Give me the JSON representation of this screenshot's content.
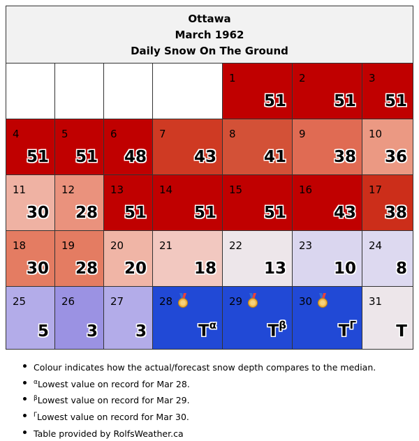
{
  "header": {
    "city": "Ottawa",
    "month": "March 1962",
    "title": "Daily Snow On The Ground"
  },
  "chart_data": {
    "type": "table",
    "title": "Daily Snow On The Ground",
    "start_weekday_offset": 4,
    "days": [
      {
        "day": "1",
        "value": "51",
        "color": "#c00000",
        "medal": false
      },
      {
        "day": "2",
        "value": "51",
        "color": "#c00000",
        "medal": false
      },
      {
        "day": "3",
        "value": "51",
        "color": "#c00000",
        "medal": false
      },
      {
        "day": "4",
        "value": "51",
        "color": "#c00000",
        "medal": false
      },
      {
        "day": "5",
        "value": "51",
        "color": "#c00000",
        "medal": false
      },
      {
        "day": "6",
        "value": "48",
        "color": "#c00000",
        "medal": false
      },
      {
        "day": "7",
        "value": "43",
        "color": "#cf3a23",
        "medal": false
      },
      {
        "day": "8",
        "value": "41",
        "color": "#d35137",
        "medal": false
      },
      {
        "day": "9",
        "value": "38",
        "color": "#e06b53",
        "medal": false
      },
      {
        "day": "10",
        "value": "36",
        "color": "#eb9983",
        "medal": false
      },
      {
        "day": "11",
        "value": "30",
        "color": "#efb2a3",
        "medal": false
      },
      {
        "day": "12",
        "value": "28",
        "color": "#ea927d",
        "medal": false
      },
      {
        "day": "13",
        "value": "51",
        "color": "#c00000",
        "medal": false
      },
      {
        "day": "14",
        "value": "51",
        "color": "#c00000",
        "medal": false
      },
      {
        "day": "15",
        "value": "51",
        "color": "#c00000",
        "medal": false
      },
      {
        "day": "16",
        "value": "43",
        "color": "#c00000",
        "medal": false
      },
      {
        "day": "17",
        "value": "38",
        "color": "#cc2e1a",
        "medal": false
      },
      {
        "day": "18",
        "value": "30",
        "color": "#e47c62",
        "medal": false
      },
      {
        "day": "19",
        "value": "28",
        "color": "#e47c62",
        "medal": false
      },
      {
        "day": "20",
        "value": "20",
        "color": "#f0b5a6",
        "medal": false
      },
      {
        "day": "21",
        "value": "18",
        "color": "#f2c8c0",
        "medal": false
      },
      {
        "day": "22",
        "value": "13",
        "color": "#ede6ea",
        "medal": false
      },
      {
        "day": "23",
        "value": "10",
        "color": "#dad6ef",
        "medal": false
      },
      {
        "day": "24",
        "value": "8",
        "color": "#ddd9f0",
        "medal": false
      },
      {
        "day": "25",
        "value": "5",
        "color": "#b3ace9",
        "medal": false
      },
      {
        "day": "26",
        "value": "3",
        "color": "#9b92e3",
        "medal": false
      },
      {
        "day": "27",
        "value": "3",
        "color": "#b3ace9",
        "medal": false
      },
      {
        "day": "28",
        "value": "T",
        "sup": "α",
        "color": "#2149d6",
        "medal": true
      },
      {
        "day": "29",
        "value": "T",
        "sup": "β",
        "color": "#2149d6",
        "medal": true
      },
      {
        "day": "30",
        "value": "T",
        "sup": "Γ",
        "color": "#2149d6",
        "medal": true
      },
      {
        "day": "31",
        "value": "T",
        "color": "#ede6ea",
        "medal": false
      }
    ]
  },
  "notes": [
    {
      "sup": "",
      "text": "Colour indicates how the actual/forecast snow depth compares to the median."
    },
    {
      "sup": "α",
      "text": "Lowest value on record for Mar 28."
    },
    {
      "sup": "β",
      "text": "Lowest value on record for Mar 29."
    },
    {
      "sup": "Γ",
      "text": "Lowest value on record for Mar 30."
    },
    {
      "sup": "",
      "text": "Table provided by RolfsWeather.ca"
    }
  ]
}
